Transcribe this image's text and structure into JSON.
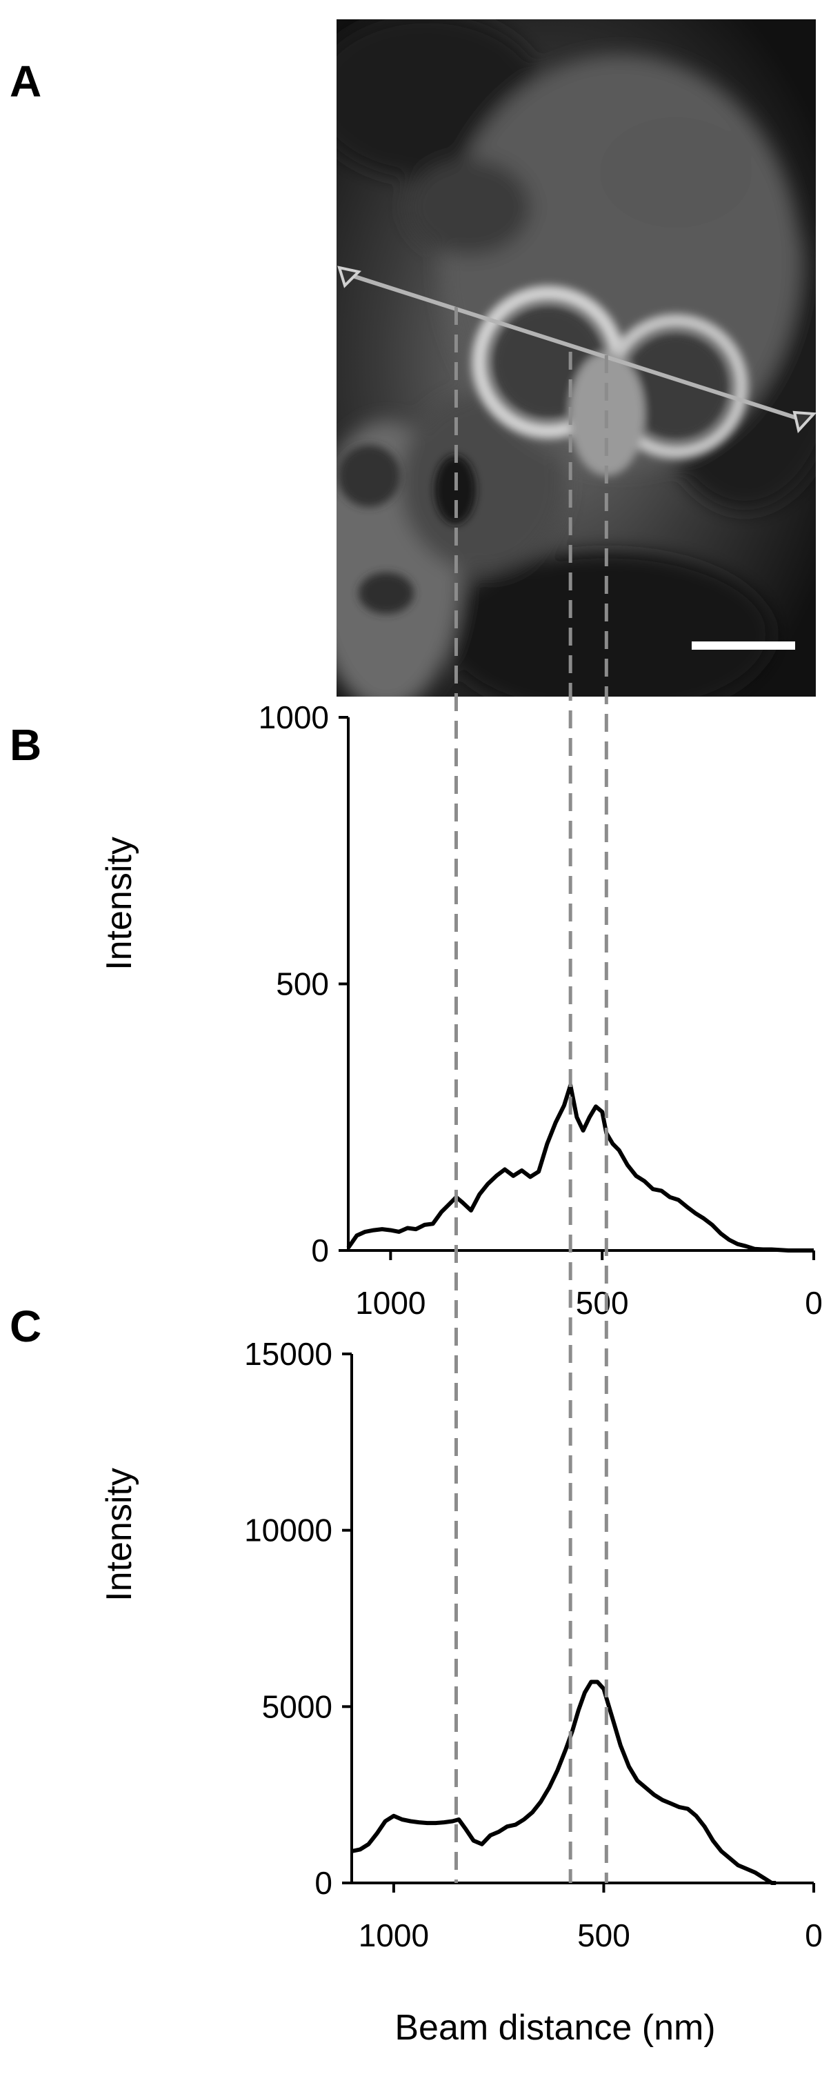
{
  "panels": {
    "a": {
      "letter": "A"
    },
    "b": {
      "letter": "B"
    },
    "c": {
      "letter": "C"
    }
  },
  "x_axis_title": "Beam distance (nm)",
  "colors": {
    "line": "#000000",
    "guide": "#8c8c8c",
    "scan_line": "#b4b4b4",
    "scale_bar": "#ffffff"
  },
  "image_panel": {
    "description_icon": "micrograph-image",
    "has_scale_bar": true,
    "has_scan_line": true
  },
  "chart_data": [
    {
      "type": "line",
      "panel": "B",
      "title": "",
      "xlabel": "Beam distance (nm)",
      "ylabel": "Intensity",
      "xlim": [
        1100,
        0
      ],
      "ylim": [
        0,
        1000
      ],
      "x_reversed": true,
      "xticks": [
        1000,
        500,
        0
      ],
      "xtick_labels": [
        "1000",
        "500",
        "0"
      ],
      "yticks": [
        0,
        500,
        1000
      ],
      "ytick_labels": [
        "0",
        "500",
        "1000"
      ],
      "grid": false,
      "guide_lines_x": [
        845,
        575,
        490
      ],
      "x": [
        1100,
        1080,
        1060,
        1040,
        1020,
        1000,
        980,
        960,
        940,
        920,
        900,
        880,
        860,
        845,
        830,
        810,
        790,
        770,
        750,
        730,
        710,
        690,
        670,
        650,
        630,
        610,
        590,
        575,
        560,
        545,
        530,
        515,
        500,
        490,
        475,
        460,
        440,
        420,
        400,
        380,
        360,
        340,
        320,
        300,
        280,
        260,
        240,
        220,
        200,
        180,
        160,
        140,
        120,
        100,
        80,
        60,
        40,
        20,
        0
      ],
      "y": [
        5,
        28,
        35,
        38,
        40,
        38,
        35,
        42,
        40,
        48,
        50,
        72,
        88,
        100,
        90,
        75,
        105,
        125,
        140,
        152,
        140,
        150,
        138,
        148,
        200,
        240,
        272,
        310,
        250,
        225,
        250,
        270,
        260,
        220,
        200,
        188,
        160,
        140,
        130,
        115,
        112,
        100,
        95,
        82,
        70,
        60,
        48,
        32,
        20,
        12,
        8,
        3,
        2,
        2,
        1,
        0,
        0,
        0,
        0
      ],
      "series": [
        {
          "values_ref": "y"
        }
      ]
    },
    {
      "type": "line",
      "panel": "C",
      "title": "",
      "xlabel": "Beam distance (nm)",
      "ylabel": "Intensity",
      "xlim": [
        1100,
        0
      ],
      "ylim": [
        0,
        15000
      ],
      "x_reversed": true,
      "xticks": [
        1000,
        500,
        0
      ],
      "xtick_labels": [
        "1000",
        "500",
        "0"
      ],
      "yticks": [
        0,
        5000,
        10000,
        15000
      ],
      "ytick_labels": [
        "0",
        "5000",
        "10000",
        "15000"
      ],
      "grid": false,
      "guide_lines_x": [
        845,
        575,
        490
      ],
      "x": [
        1100,
        1080,
        1060,
        1040,
        1020,
        1000,
        980,
        960,
        940,
        920,
        900,
        880,
        860,
        845,
        830,
        810,
        790,
        770,
        750,
        730,
        710,
        690,
        670,
        650,
        630,
        610,
        590,
        575,
        560,
        545,
        530,
        515,
        500,
        490,
        475,
        460,
        440,
        420,
        400,
        380,
        360,
        340,
        320,
        300,
        280,
        260,
        240,
        220,
        200,
        180,
        160,
        140,
        120,
        100,
        90
      ],
      "y": [
        900,
        950,
        1100,
        1400,
        1750,
        1900,
        1800,
        1750,
        1720,
        1700,
        1700,
        1720,
        1750,
        1800,
        1550,
        1200,
        1100,
        1350,
        1450,
        1600,
        1650,
        1800,
        2000,
        2300,
        2700,
        3200,
        3800,
        4300,
        4900,
        5400,
        5700,
        5700,
        5500,
        5100,
        4500,
        3900,
        3300,
        2900,
        2700,
        2500,
        2350,
        2250,
        2150,
        2100,
        1900,
        1600,
        1200,
        900,
        700,
        500,
        400,
        300,
        150,
        0,
        0
      ],
      "series": [
        {
          "values_ref": "y"
        }
      ]
    }
  ]
}
